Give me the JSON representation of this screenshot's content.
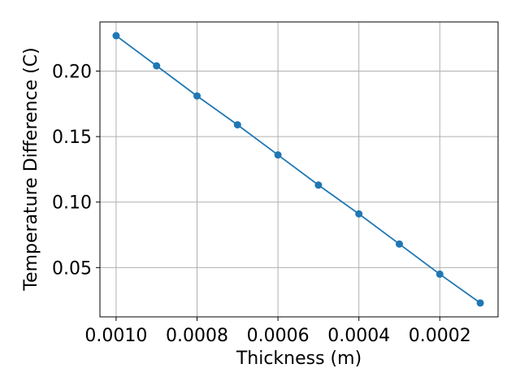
{
  "chart_data": {
    "type": "line",
    "title": "",
    "xlabel": "Thickness (m)",
    "ylabel": "Temperature Difference (C)",
    "x_axis_inverted": true,
    "xlim": [
      0.00104,
      5.6e-05
    ],
    "ylim": [
      0.0124,
      0.2375
    ],
    "grid": true,
    "legend": "none",
    "line_color": "#1f77b4",
    "marker": "circle",
    "x_ticks": [
      0.001,
      0.0008,
      0.0006,
      0.0004,
      0.0002
    ],
    "x_tick_labels": [
      "0.0010",
      "0.0008",
      "0.0006",
      "0.0004",
      "0.0002"
    ],
    "y_ticks": [
      0.05,
      0.1,
      0.15,
      0.2
    ],
    "y_tick_labels": [
      "0.05",
      "0.10",
      "0.15",
      "0.20"
    ],
    "series": [
      {
        "x": [
          0.001,
          0.0009,
          0.0008,
          0.0007,
          0.0006,
          0.0005,
          0.0004,
          0.0003,
          0.0002,
          0.0001
        ],
        "y": [
          0.227,
          0.204,
          0.181,
          0.159,
          0.136,
          0.113,
          0.091,
          0.068,
          0.045,
          0.023
        ]
      }
    ]
  }
}
